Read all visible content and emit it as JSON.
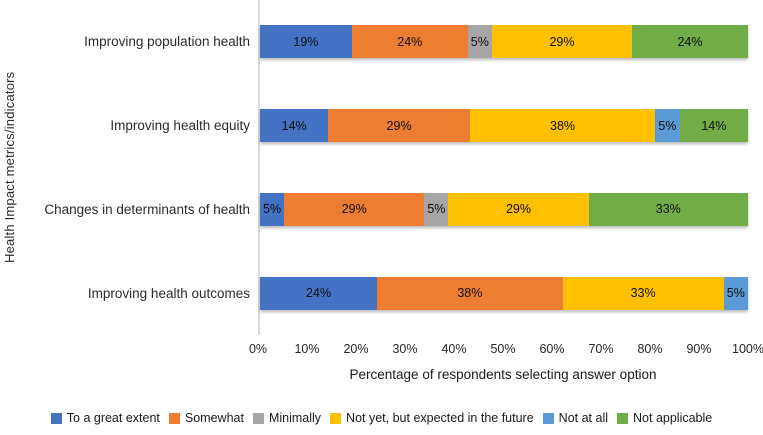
{
  "chart_data": {
    "type": "bar",
    "variant": "stacked-100",
    "orientation": "horizontal",
    "title": "",
    "xlabel": "Percentage of respondents selecting answer option",
    "ylabel": "Health Impact metrics/indicators",
    "xlim": [
      0,
      100
    ],
    "x_ticks": [
      "0%",
      "10%",
      "20%",
      "30%",
      "40%",
      "50%",
      "60%",
      "70%",
      "80%",
      "90%",
      "100%"
    ],
    "grid": "off",
    "legend_position": "bottom",
    "data_label_suffix": "%",
    "axis_line_color": "#d9d9d9",
    "categories": [
      "Improving population health",
      "Improving health equity",
      "Changes in determinants of health",
      "Improving health outcomes"
    ],
    "series": [
      {
        "name": "To a great extent",
        "color": "#4472C4",
        "values": [
          19,
          14,
          5,
          24
        ]
      },
      {
        "name": "Somewhat",
        "color": "#ED7D31",
        "values": [
          24,
          29,
          29,
          38
        ]
      },
      {
        "name": "Minimally",
        "color": "#A5A5A5",
        "values": [
          5,
          0,
          5,
          0
        ]
      },
      {
        "name": "Not yet, but expected in the future",
        "color": "#FFC000",
        "values": [
          29,
          38,
          29,
          33
        ]
      },
      {
        "name": "Not at all",
        "color": "#5B9BD5",
        "values": [
          0,
          5,
          0,
          5
        ]
      },
      {
        "name": "Not applicable",
        "color": "#70AD47",
        "values": [
          24,
          14,
          33,
          0
        ]
      }
    ]
  }
}
